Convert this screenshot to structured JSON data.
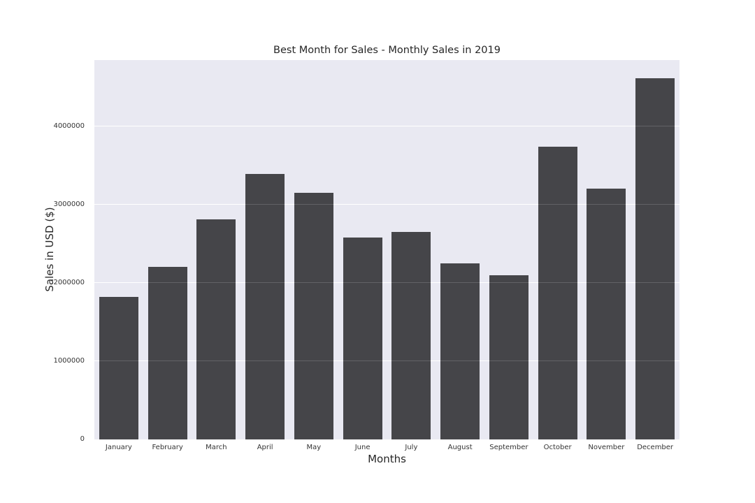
{
  "chart_data": {
    "type": "bar",
    "title": "Best Month for Sales - Monthly Sales in 2019",
    "xlabel": "Months",
    "ylabel": "Sales in USD ($)",
    "categories": [
      "January",
      "February",
      "March",
      "April",
      "May",
      "June",
      "July",
      "August",
      "September",
      "October",
      "November",
      "December"
    ],
    "values": [
      1822257,
      2202022,
      2807100,
      3390670,
      3152607,
      2577802,
      2647776,
      2244468,
      2097560,
      3736727,
      3199603,
      4613443
    ],
    "yticks": [
      0,
      1000000,
      2000000,
      3000000,
      4000000
    ],
    "ylim": [
      0,
      4844115
    ],
    "grid": true,
    "legend": false,
    "bar_width_fraction": 0.8,
    "colors": {
      "bar": "#454549",
      "plot_background": "#e9e9f2",
      "gridline": "#ffffff",
      "figure_background": "#ffffff",
      "text": "#262626",
      "tick_text": "#333333"
    }
  }
}
